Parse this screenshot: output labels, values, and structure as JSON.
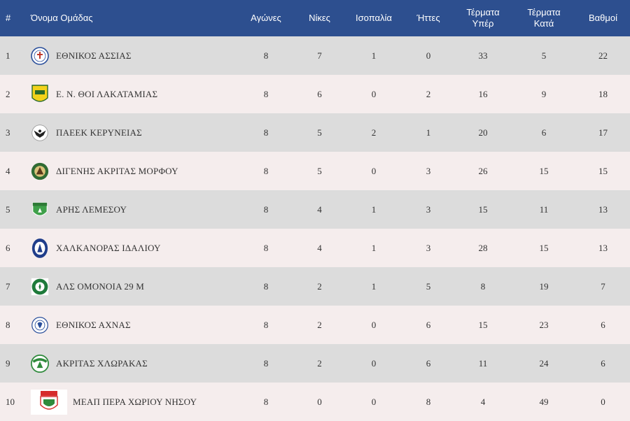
{
  "headers": {
    "rank": "#",
    "team": "Όνομα Ομάδας",
    "played": "Αγώνες",
    "wins": "Νίκες",
    "draws": "Ισοπαλία",
    "losses": "Ήττες",
    "goals_for_1": "Τέρματα",
    "goals_for_2": "Υπέρ",
    "goals_against_1": "Τέρματα",
    "goals_against_2": "Κατά",
    "points": "Βαθμοί"
  },
  "rows": [
    {
      "rank": "1",
      "team": "ΕΘΝΙΚΟΣ ΑΣΣΙΑΣ",
      "played": "8",
      "wins": "7",
      "draws": "1",
      "losses": "0",
      "gf": "33",
      "ga": "5",
      "pts": "22",
      "logo": "ethnikos-assias-crest-icon"
    },
    {
      "rank": "2",
      "team": "Ε. Ν. ΘΟΙ ΛΑΚΑΤΑΜΙΑΣ",
      "played": "8",
      "wins": "6",
      "draws": "0",
      "losses": "2",
      "gf": "16",
      "ga": "9",
      "pts": "18",
      "logo": "thoi-lakatamias-crest-icon"
    },
    {
      "rank": "3",
      "team": "ΠΑΕΕΚ ΚΕΡΥΝΕΙΑΣ",
      "played": "8",
      "wins": "5",
      "draws": "2",
      "losses": "1",
      "gf": "20",
      "ga": "6",
      "pts": "17",
      "logo": "paeek-eagle-crest-icon"
    },
    {
      "rank": "4",
      "team": "ΔΙΓΕΝΗΣ ΑΚΡΙΤΑΣ ΜΟΡΦΟΥ",
      "played": "8",
      "wins": "5",
      "draws": "0",
      "losses": "3",
      "gf": "26",
      "ga": "15",
      "pts": "15",
      "logo": "digenis-morfou-crest-icon"
    },
    {
      "rank": "5",
      "team": "ΑΡΗΣ ΛΕΜΕΣΟΥ",
      "played": "8",
      "wins": "4",
      "draws": "1",
      "losses": "3",
      "gf": "15",
      "ga": "11",
      "pts": "13",
      "logo": "aris-limassol-crest-icon"
    },
    {
      "rank": "6",
      "team": "ΧΑΛΚΑΝΟΡΑΣ ΙΔΑΛΙΟΥ",
      "played": "8",
      "wins": "4",
      "draws": "1",
      "losses": "3",
      "gf": "28",
      "ga": "15",
      "pts": "13",
      "logo": "chalkanoras-crest-icon"
    },
    {
      "rank": "7",
      "team": "ΑΛΣ ΟΜΟΝΟΙΑ 29 Μ",
      "played": "8",
      "wins": "2",
      "draws": "1",
      "losses": "5",
      "gf": "8",
      "ga": "19",
      "pts": "7",
      "logo": "omonoia-29m-crest-icon"
    },
    {
      "rank": "8",
      "team": "ΕΘΝΙΚΟΣ ΑΧΝΑΣ",
      "played": "8",
      "wins": "2",
      "draws": "0",
      "losses": "6",
      "gf": "15",
      "ga": "23",
      "pts": "6",
      "logo": "ethnikos-achnas-crest-icon"
    },
    {
      "rank": "9",
      "team": "ΑΚΡΙΤΑΣ ΧΛΩΡΑΚΑΣ",
      "played": "8",
      "wins": "2",
      "draws": "0",
      "losses": "6",
      "gf": "11",
      "ga": "24",
      "pts": "6",
      "logo": "akritas-chlorakas-crest-icon"
    },
    {
      "rank": "10",
      "team": "ΜΕΑΠ ΠΕΡΑ ΧΩΡΙΟΥ ΝΗΣΟΥ",
      "played": "8",
      "wins": "0",
      "draws": "0",
      "losses": "8",
      "gf": "4",
      "ga": "49",
      "pts": "0",
      "logo": "meap-crest-icon"
    }
  ],
  "colors": {
    "header_bg": "#2d4f8f",
    "row_odd": "#dcdcdc",
    "row_even": "#f5eded"
  }
}
